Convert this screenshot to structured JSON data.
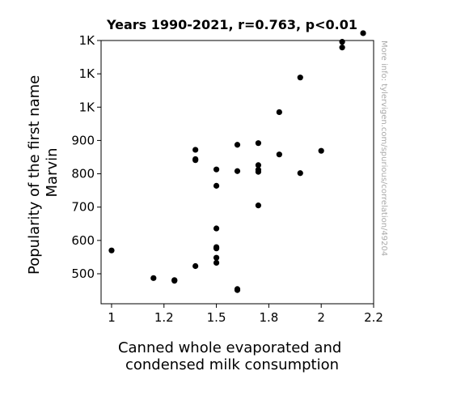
{
  "chart_data": {
    "type": "scatter",
    "title": "Years 1990-2021, r=0.763, p<0.01",
    "xlabel_lines": [
      "Canned whole evaporated and",
      "condensed milk consumption"
    ],
    "ylabel_lines": [
      "Popularity of the first name",
      "Marvin"
    ],
    "xlim": [
      0.95,
      2.25
    ],
    "ylim": [
      410,
      1200
    ],
    "xticks": [
      {
        "value": 1.0,
        "label": "1"
      },
      {
        "value": 1.25,
        "label": "1.2"
      },
      {
        "value": 1.5,
        "label": "1.5"
      },
      {
        "value": 1.75,
        "label": "1.8"
      },
      {
        "value": 2.0,
        "label": "2"
      },
      {
        "value": 2.25,
        "label": "2.2"
      }
    ],
    "yticks": [
      {
        "value": 500,
        "label": "500"
      },
      {
        "value": 600,
        "label": "600"
      },
      {
        "value": 700,
        "label": "700"
      },
      {
        "value": 800,
        "label": "800"
      },
      {
        "value": 900,
        "label": "900"
      },
      {
        "value": 1000,
        "label": "1K"
      },
      {
        "value": 1100,
        "label": "1K"
      },
      {
        "value": 1200,
        "label": "1K"
      }
    ],
    "points": [
      {
        "x": 1.0,
        "y": 570
      },
      {
        "x": 1.2,
        "y": 487
      },
      {
        "x": 1.3,
        "y": 481
      },
      {
        "x": 1.3,
        "y": 479
      },
      {
        "x": 1.4,
        "y": 523
      },
      {
        "x": 1.4,
        "y": 841
      },
      {
        "x": 1.4,
        "y": 844
      },
      {
        "x": 1.4,
        "y": 872
      },
      {
        "x": 1.5,
        "y": 533
      },
      {
        "x": 1.5,
        "y": 548
      },
      {
        "x": 1.5,
        "y": 576
      },
      {
        "x": 1.5,
        "y": 580
      },
      {
        "x": 1.5,
        "y": 636
      },
      {
        "x": 1.5,
        "y": 764
      },
      {
        "x": 1.5,
        "y": 813
      },
      {
        "x": 1.6,
        "y": 451
      },
      {
        "x": 1.6,
        "y": 454
      },
      {
        "x": 1.6,
        "y": 808
      },
      {
        "x": 1.6,
        "y": 887
      },
      {
        "x": 1.7,
        "y": 705
      },
      {
        "x": 1.7,
        "y": 806
      },
      {
        "x": 1.7,
        "y": 812
      },
      {
        "x": 1.7,
        "y": 826
      },
      {
        "x": 1.7,
        "y": 892
      },
      {
        "x": 1.8,
        "y": 858
      },
      {
        "x": 1.8,
        "y": 985
      },
      {
        "x": 1.9,
        "y": 802
      },
      {
        "x": 1.9,
        "y": 1089
      },
      {
        "x": 2.0,
        "y": 869
      },
      {
        "x": 2.1,
        "y": 1179
      },
      {
        "x": 2.1,
        "y": 1196
      },
      {
        "x": 2.2,
        "y": 1222
      }
    ],
    "marker_color": "#000000",
    "grid": false,
    "watermark": "More info: tylervigen.com/spurious/correlation/49204"
  }
}
